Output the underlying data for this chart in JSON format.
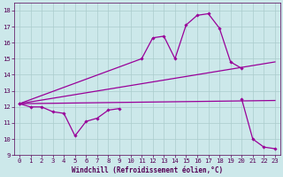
{
  "xlabel": "Windchill (Refroidissement éolien,°C)",
  "background_color": "#cce8ea",
  "grid_color": "#aacccc",
  "line_color": "#990099",
  "xlim": [
    -0.5,
    23.5
  ],
  "ylim": [
    9,
    18.5
  ],
  "yticks": [
    9,
    10,
    11,
    12,
    13,
    14,
    15,
    16,
    17,
    18
  ],
  "xticks": [
    0,
    1,
    2,
    3,
    4,
    5,
    6,
    7,
    8,
    9,
    10,
    11,
    12,
    13,
    14,
    15,
    16,
    17,
    18,
    19,
    20,
    21,
    22,
    23
  ],
  "series": [
    {
      "name": "low_curve",
      "x": [
        0,
        1,
        2,
        3,
        4,
        5,
        6,
        7,
        8,
        9
      ],
      "y": [
        12.2,
        12.0,
        12.0,
        11.7,
        11.6,
        10.2,
        11.1,
        11.3,
        11.8,
        11.9
      ],
      "has_markers": true
    },
    {
      "name": "high_curve",
      "x": [
        0,
        11,
        12,
        13,
        14,
        15,
        16,
        17,
        18,
        19,
        20
      ],
      "y": [
        12.2,
        15.0,
        16.3,
        16.4,
        15.0,
        17.1,
        17.7,
        17.8,
        16.9,
        14.8,
        14.4
      ],
      "has_markers": true
    },
    {
      "name": "tail_curve",
      "x": [
        20,
        21,
        22,
        23
      ],
      "y": [
        12.5,
        10.0,
        9.5,
        9.4
      ],
      "has_markers": true
    },
    {
      "name": "trend_upper",
      "x": [
        0,
        23
      ],
      "y": [
        12.2,
        14.8
      ],
      "has_markers": false
    },
    {
      "name": "trend_lower",
      "x": [
        0,
        23
      ],
      "y": [
        12.2,
        12.4
      ],
      "has_markers": false
    }
  ]
}
